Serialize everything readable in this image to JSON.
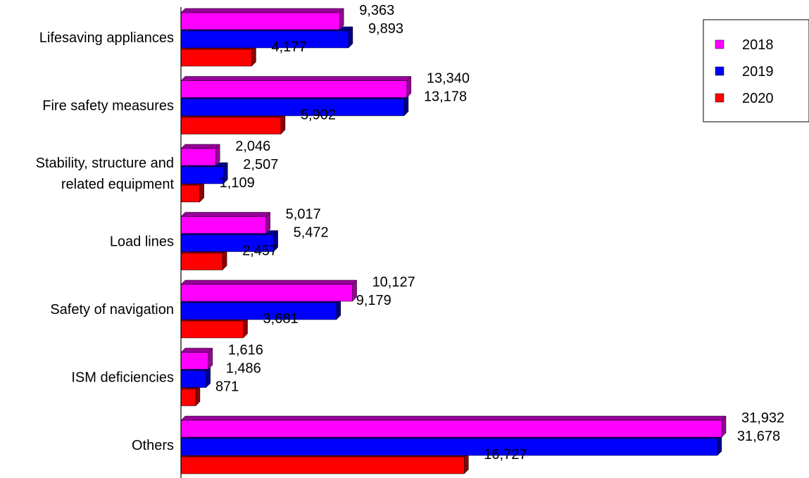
{
  "chart_data": {
    "type": "bar",
    "orientation": "horizontal",
    "style": "3d",
    "categories": [
      "Lifesaving appliances",
      "Fire safety measures",
      "Stability, structure and related equipment",
      "Load lines",
      "Safety of navigation",
      "ISM deficiencies",
      "Others"
    ],
    "category_lines": [
      [
        "Lifesaving appliances"
      ],
      [
        "Fire safety measures"
      ],
      [
        "Stability, structure and",
        "related equipment"
      ],
      [
        "Load lines"
      ],
      [
        "Safety of navigation"
      ],
      [
        "ISM deficiencies"
      ],
      [
        "Others"
      ]
    ],
    "series": [
      {
        "name": "2018",
        "color": "#ff00ff",
        "side_color": "#990099",
        "values": [
          9363,
          13340,
          2046,
          5017,
          10127,
          1616,
          31932
        ],
        "labels": [
          "9,363",
          "13,340",
          "2,046",
          "5,017",
          "10,127",
          "1,616",
          "31,932"
        ]
      },
      {
        "name": "2019",
        "color": "#0000ff",
        "side_color": "#00008b",
        "values": [
          9893,
          13178,
          2507,
          5472,
          9179,
          1486,
          31678
        ],
        "labels": [
          "9,893",
          "13,178",
          "2,507",
          "5,472",
          "9,179",
          "1,486",
          "31,678"
        ]
      },
      {
        "name": "2020",
        "color": "#ff0000",
        "side_color": "#8b0000",
        "values": [
          4177,
          5902,
          1109,
          2457,
          3681,
          871,
          16727
        ],
        "labels": [
          "4,177",
          "5,902",
          "1,109",
          "2,457",
          "3,681",
          "871",
          "16,727"
        ]
      }
    ],
    "xlim": [
      0,
      33000
    ],
    "grid": false,
    "legend_position": "top-right",
    "title": "",
    "xlabel": "",
    "ylabel": ""
  }
}
